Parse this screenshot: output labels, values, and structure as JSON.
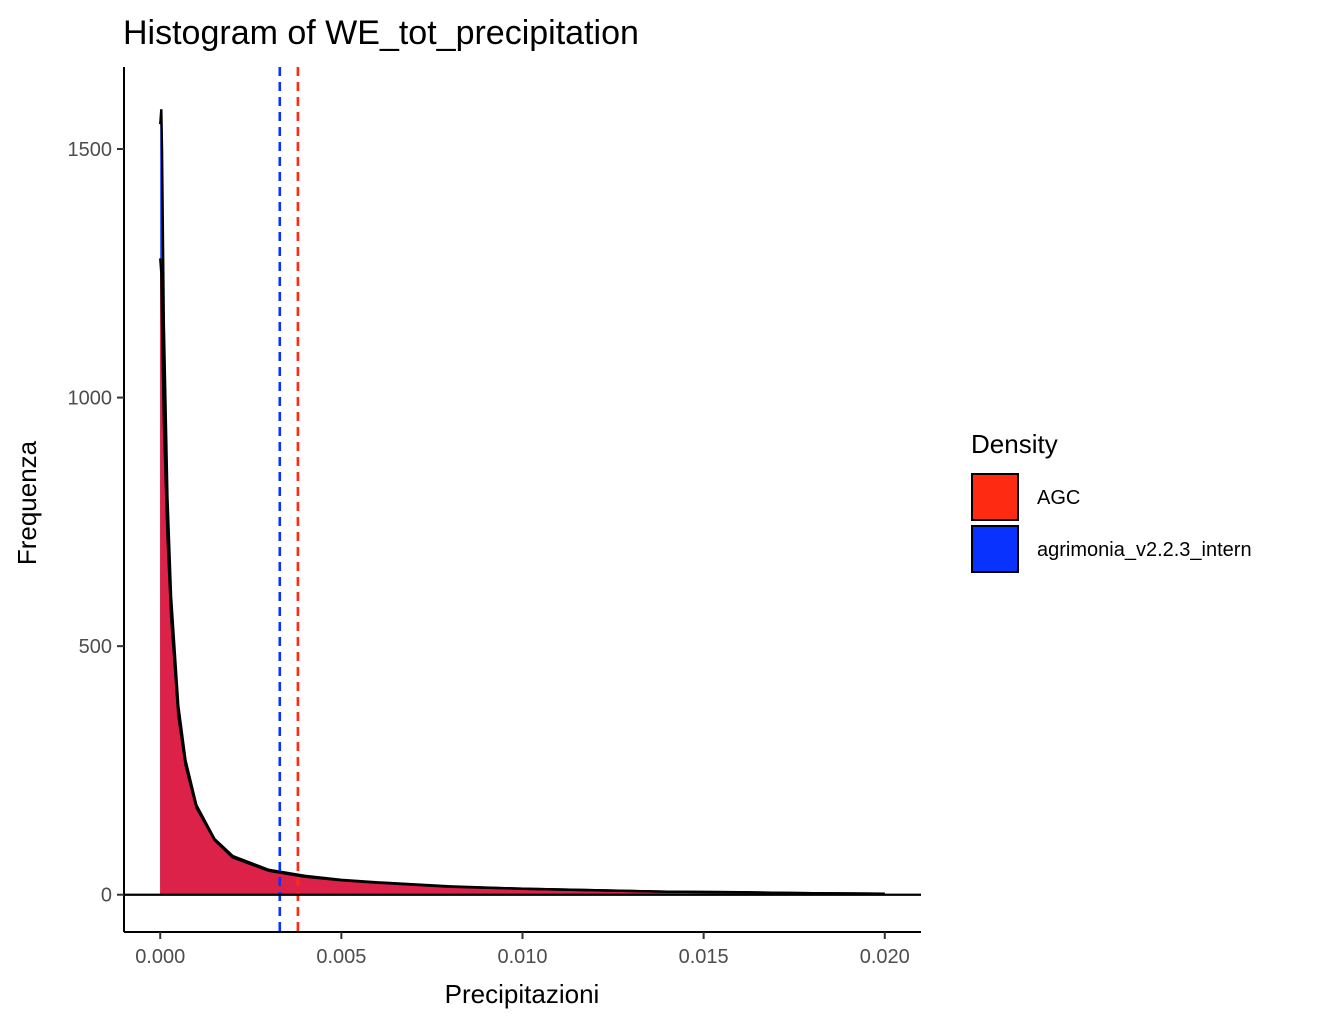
{
  "chart_data": {
    "type": "area",
    "title": "Histogram of WE_tot_precipitation",
    "xlabel": "Precipitazioni",
    "ylabel": "Frequenza",
    "xlim": [
      -0.001,
      0.021
    ],
    "ylim": [
      -75,
      1665
    ],
    "x_ticks": [
      0.0,
      0.005,
      0.01,
      0.015,
      0.02
    ],
    "x_tick_labels": [
      "0.000",
      "0.005",
      "0.010",
      "0.015",
      "0.020"
    ],
    "y_ticks": [
      0,
      500,
      1000,
      1500
    ],
    "y_tick_labels": [
      "0",
      "500",
      "1000",
      "1500"
    ],
    "grid": false,
    "legend": {
      "title": "Density",
      "position": "right",
      "entries": [
        {
          "label": "AGC",
          "color": "#FF2A12"
        },
        {
          "label": "agrimonia_v2.2.3_intern",
          "color": "#0A32FF"
        }
      ]
    },
    "series": [
      {
        "name": "AGC",
        "color": "#FF2A12",
        "x": [
          0.0,
          3e-05,
          5e-05,
          0.0001,
          0.0002,
          0.0003,
          0.0005,
          0.0007,
          0.001,
          0.0015,
          0.002,
          0.003,
          0.004,
          0.005,
          0.006,
          0.008,
          0.01,
          0.012,
          0.014,
          0.016,
          0.018,
          0.02
        ],
        "values": [
          1280,
          1250,
          1150,
          950,
          720,
          560,
          360,
          260,
          175,
          110,
          75,
          48,
          36,
          29,
          24,
          16,
          12,
          9,
          6,
          5,
          3,
          2
        ]
      },
      {
        "name": "agrimonia_v2.2.3_intern",
        "color": "#0A32FF",
        "x": [
          0.0,
          3e-05,
          5e-05,
          0.0001,
          0.0002,
          0.0003,
          0.0005,
          0.0007,
          0.001,
          0.0015,
          0.002,
          0.003,
          0.004,
          0.005,
          0.006,
          0.008,
          0.01,
          0.012,
          0.014,
          0.016,
          0.018,
          0.02
        ],
        "values": [
          1550,
          1580,
          1500,
          1150,
          800,
          600,
          380,
          270,
          180,
          112,
          78,
          50,
          38,
          30,
          25,
          17,
          12,
          9,
          6,
          5,
          3,
          2
        ]
      }
    ],
    "vlines": [
      {
        "series": "agrimonia_v2.2.3_intern",
        "x": 0.0033,
        "color": "#0A32FF",
        "style": "dashed"
      },
      {
        "series": "AGC",
        "x": 0.0038,
        "color": "#FF2A12",
        "style": "dashed"
      }
    ],
    "overlap_fill_color": "#DD2249",
    "hline_y": 0
  }
}
